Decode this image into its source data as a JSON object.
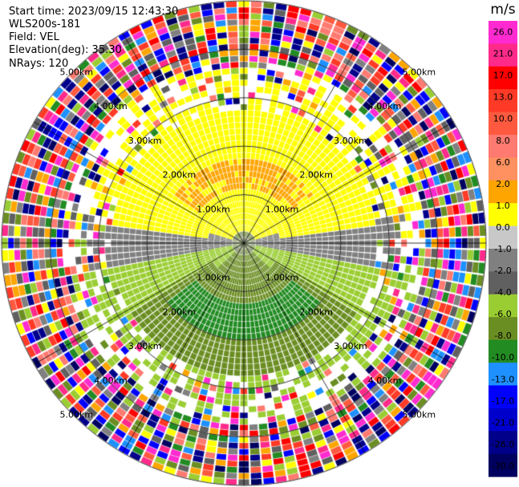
{
  "header": {
    "start_time": "Start time: 2023/09/15 12:43:30",
    "site": "WLS200s-181",
    "field": "Field: VEL",
    "elevation": "Elevation(deg): 35.30",
    "nrays": "NRays: 120"
  },
  "chart_data": {
    "type": "heatmap",
    "subtype": "polar-ppi",
    "nrays": 120,
    "range_rings_km": [
      1.0,
      2.0,
      3.0,
      4.0,
      5.0
    ],
    "ring_labels": [
      "1.00km",
      "2.00km",
      "3.00km",
      "4.00km",
      "5.00km"
    ],
    "max_range_km": 5.0,
    "colorbar": {
      "unit": "m/s",
      "ticks": [
        "26.0",
        "21.0",
        "17.0",
        "13.0",
        "10.0",
        "8.0",
        "6.0",
        "2.0",
        "1.0",
        "0.0",
        "-1.0",
        "-2.0",
        "-4.0",
        "-6.0",
        "-8.0",
        "-10.0",
        "-13.0",
        "-17.0",
        "-21.0",
        "-26.0",
        "-30.0"
      ],
      "colors": [
        "#ff2ad0",
        "#ff2a8a",
        "#ff0000",
        "#ff3a26",
        "#ff5a40",
        "#ff7a70",
        "#ff9060",
        "#ffa500",
        "#ffff00",
        "#c8c8c8",
        "#808080",
        "#606060",
        "#9acd32",
        "#6b8e23",
        "#228b22",
        "#1e90ff",
        "#0000ff",
        "#0000cd",
        "#00008b",
        "#000060"
      ]
    }
  }
}
